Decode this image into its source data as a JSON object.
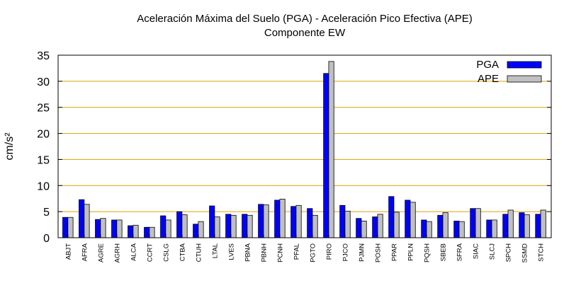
{
  "chart_data": {
    "type": "bar",
    "title": "Aceleración Máxima del Suelo (PGA) -  Aceleración Pico Efectiva (APE)",
    "subtitle": "Componente EW",
    "xlabel": "",
    "ylabel": "cm/s²",
    "ylim": [
      0,
      35
    ],
    "yticks": [
      0,
      5,
      10,
      15,
      20,
      25,
      30,
      35
    ],
    "grid": "horizontal",
    "legend_position": "top-right",
    "categories": [
      "ABJT",
      "AFRA",
      "AGRE",
      "AGRH",
      "ALCA",
      "CCRT",
      "CSLG",
      "CTBA",
      "CTUH",
      "LTAL",
      "LVES",
      "PBNA",
      "PBNH",
      "PCNH",
      "PFAL",
      "PGTO",
      "PIRO",
      "PJCO",
      "PJMN",
      "POSH",
      "PPAR",
      "PPLN",
      "PQSH",
      "SBEB",
      "SFRA",
      "SIAC",
      "SLCJ",
      "SPCH",
      "SSMD",
      "STCH"
    ],
    "series": [
      {
        "name": "PGA",
        "color": "#0000ff",
        "values": [
          3.9,
          7.3,
          3.5,
          3.4,
          2.3,
          2.0,
          4.2,
          5.0,
          2.6,
          6.1,
          4.5,
          4.5,
          6.4,
          7.2,
          6.0,
          5.6,
          31.5,
          6.2,
          3.7,
          4.0,
          7.9,
          7.2,
          3.4,
          4.3,
          3.2,
          5.6,
          3.4,
          4.5,
          4.8,
          4.5
        ]
      },
      {
        "name": "APE",
        "color": "#c0c0c0",
        "values": [
          3.9,
          6.4,
          3.7,
          3.4,
          2.4,
          2.0,
          3.4,
          4.4,
          3.1,
          4.0,
          4.3,
          4.3,
          6.3,
          7.4,
          6.2,
          4.3,
          33.8,
          5.1,
          3.2,
          4.5,
          4.9,
          6.8,
          3.1,
          4.8,
          3.1,
          5.6,
          3.4,
          5.3,
          4.4,
          5.3
        ]
      }
    ]
  }
}
